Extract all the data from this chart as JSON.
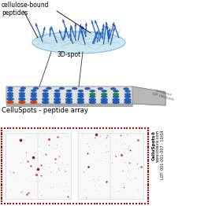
{
  "title_top": "cellulose-bound\npeptides",
  "label_3dspot": "3D-spot",
  "label_array": "CelluSpots - peptide array",
  "label_side_line1": "CelluSpots®",
  "label_side_line2": "www.intavis.com",
  "label_side_line3": "LOT: 001-001-007 - 10/04",
  "bg_color": "#ffffff",
  "spot_blue": "#1f5fbb",
  "spot_orange": "#cc4400",
  "spot_green": "#228b22",
  "board_face": "#e0e0e0",
  "board_side": "#b8b8b8",
  "ellipse_fill": "#cce8f5",
  "ellipse_edge": "#88bbdd",
  "fiber_color": "#b0b0b0",
  "stick_color": "#1f5fbb",
  "dot_dark": "#6b0000",
  "dot_mid": "#aa2020",
  "dot_light": "#cc8888"
}
